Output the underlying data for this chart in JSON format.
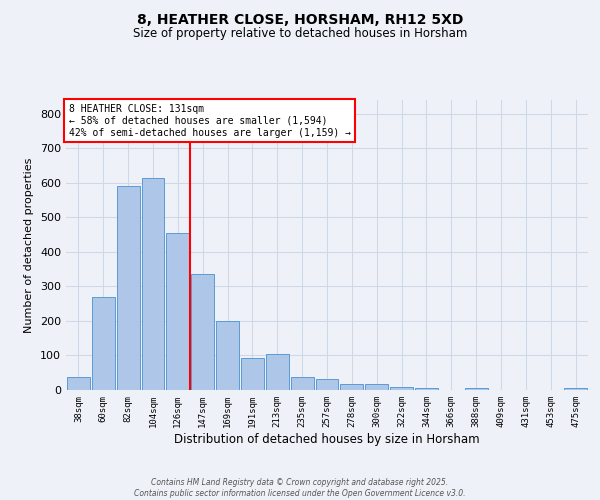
{
  "title": "8, HEATHER CLOSE, HORSHAM, RH12 5XD",
  "subtitle": "Size of property relative to detached houses in Horsham",
  "xlabel": "Distribution of detached houses by size in Horsham",
  "ylabel": "Number of detached properties",
  "bin_labels": [
    "38sqm",
    "60sqm",
    "82sqm",
    "104sqm",
    "126sqm",
    "147sqm",
    "169sqm",
    "191sqm",
    "213sqm",
    "235sqm",
    "257sqm",
    "278sqm",
    "300sqm",
    "322sqm",
    "344sqm",
    "366sqm",
    "388sqm",
    "409sqm",
    "431sqm",
    "453sqm",
    "475sqm"
  ],
  "bin_values": [
    38,
    270,
    590,
    615,
    455,
    335,
    200,
    93,
    105,
    38,
    32,
    18,
    18,
    10,
    5,
    1,
    5,
    0,
    0,
    0,
    6
  ],
  "bar_color": "#aec6e8",
  "bar_edge_color": "#5b9bd5",
  "grid_color": "#d0d8e8",
  "vline_x_index": 4.5,
  "vline_color": "red",
  "annotation_text": "8 HEATHER CLOSE: 131sqm\n← 58% of detached houses are smaller (1,594)\n42% of semi-detached houses are larger (1,159) →",
  "annotation_box_color": "white",
  "annotation_box_edge": "red",
  "ylim": [
    0,
    840
  ],
  "yticks": [
    0,
    100,
    200,
    300,
    400,
    500,
    600,
    700,
    800
  ],
  "footnote": "Contains HM Land Registry data © Crown copyright and database right 2025.\nContains public sector information licensed under the Open Government Licence v3.0.",
  "bg_color": "#eef2f8",
  "title_fontsize": 10,
  "subtitle_fontsize": 8.5,
  "ylabel_fontsize": 8,
  "xlabel_fontsize": 8.5,
  "annot_fontsize": 7
}
